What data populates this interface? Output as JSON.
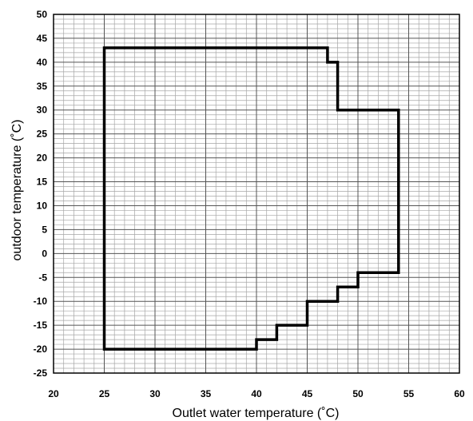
{
  "chart_data": {
    "type": "line",
    "title": "",
    "xlabel": "Outlet water  temperature (˚C)",
    "ylabel": "outdoor temperature (˚C)",
    "xlim": [
      20,
      60
    ],
    "ylim": [
      -25,
      50
    ],
    "x_ticks": [
      20,
      25,
      30,
      35,
      40,
      45,
      50,
      55,
      60
    ],
    "y_ticks": [
      -25,
      -20,
      -15,
      -10,
      -5,
      0,
      5,
      10,
      15,
      20,
      25,
      30,
      35,
      40,
      45,
      50
    ],
    "x_minor_step": 1,
    "y_minor_step": 1,
    "grid": true,
    "legend": "none",
    "colors": {
      "grid": "#a6a6a6",
      "frame": "#000000",
      "series": "#000000"
    },
    "series": [
      {
        "name": "",
        "closed": true,
        "points": [
          [
            25,
            -20
          ],
          [
            25,
            43
          ],
          [
            47,
            43
          ],
          [
            47,
            40
          ],
          [
            48,
            40
          ],
          [
            48,
            30
          ],
          [
            54,
            30
          ],
          [
            54,
            -4
          ],
          [
            50,
            -4
          ],
          [
            50,
            -7
          ],
          [
            48,
            -7
          ],
          [
            48,
            -10
          ],
          [
            45,
            -10
          ],
          [
            45,
            -15
          ],
          [
            42,
            -15
          ],
          [
            42,
            -18
          ],
          [
            40,
            -18
          ],
          [
            40,
            -20
          ]
        ]
      }
    ]
  }
}
